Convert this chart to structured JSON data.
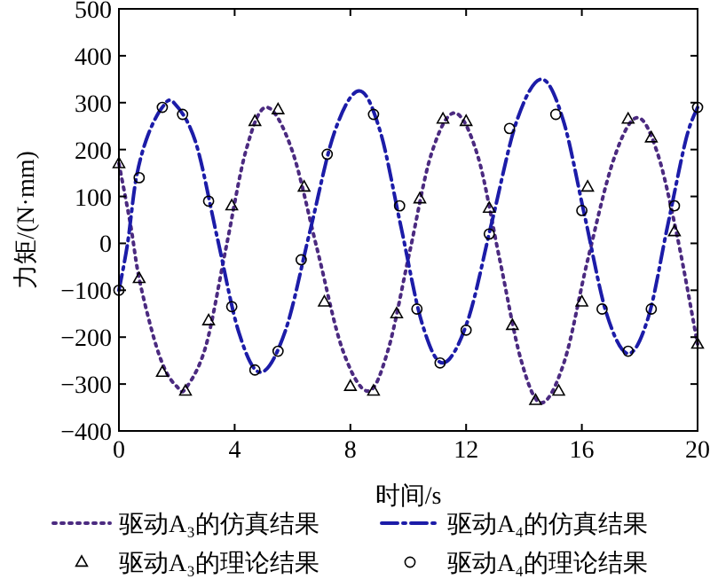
{
  "chart_data": {
    "type": "line",
    "xlabel": "时间/s",
    "ylabel": "力矩/(N·mm)",
    "xlim": [
      0,
      20
    ],
    "ylim": [
      -400,
      500
    ],
    "xticks": [
      0,
      4,
      8,
      12,
      16,
      20
    ],
    "yticks": [
      -400,
      -300,
      -200,
      -100,
      0,
      100,
      200,
      300,
      400,
      500
    ],
    "grid": false,
    "legend": "bottom",
    "series": [
      {
        "name": "驱动A₃的仿真结果",
        "color": "#4b2a80",
        "line_style": "dotted",
        "marker": "none",
        "x": [
          0,
          0.4,
          0.7,
          1.2,
          1.6,
          2.0,
          2.3,
          3.0,
          3.7,
          4.4,
          5.1,
          5.975,
          6.85,
          7.725,
          8.6,
          9.3,
          10.05,
          10.8,
          11.6,
          12.4,
          13.15,
          13.9,
          14.6,
          15.4,
          16.2,
          17.1,
          17.9,
          18.6,
          19.3,
          20
        ],
        "values": [
          170,
          40,
          -75,
          -200,
          -270,
          -305,
          -310,
          -220,
          -10,
          200,
          290,
          200,
          -12,
          -226,
          -315,
          -228,
          -18,
          191,
          278,
          187,
          -31,
          -249,
          -340,
          -251,
          -36,
          179,
          268,
          195,
          14,
          -215
        ]
      },
      {
        "name": "驱动A₄的仿真结果",
        "color": "#1c1ca8",
        "line_style": "dashdot",
        "marker": "none",
        "x": [
          0,
          0.3,
          0.6,
          1.0,
          1.5,
          1.9,
          2.65,
          3.4,
          4.15,
          4.9,
          5.75,
          6.6,
          7.45,
          8.3,
          9.025,
          9.75,
          10.475,
          11.2,
          12.05,
          12.9,
          13.75,
          14.6,
          15.35,
          16.1,
          16.85,
          17.6,
          18.3,
          18.95,
          19.6,
          20
        ],
        "values": [
          -100,
          0,
          140,
          230,
          290,
          300,
          216,
          12,
          -191,
          -275,
          -187,
          25,
          237,
          325,
          240,
          35,
          -170,
          -255,
          -166,
          48,
          261,
          350,
          264,
          58,
          -149,
          -235,
          -157,
          33,
          222,
          290
        ]
      },
      {
        "name": "驱动A₃的理论结果",
        "type": "scatter",
        "color": "#000000",
        "marker": "triangle",
        "x": [
          0,
          0.7,
          1.5,
          2.3,
          3.1,
          3.9,
          4.7,
          5.5,
          6.4,
          7.1,
          8.0,
          8.8,
          9.6,
          10.4,
          11.2,
          12.0,
          12.8,
          13.6,
          14.4,
          15.2,
          16.0,
          16.2,
          17.6,
          18.4,
          19.2,
          20
        ],
        "values": [
          170,
          -75,
          -275,
          -315,
          -165,
          80,
          260,
          285,
          120,
          -125,
          -305,
          -315,
          -150,
          95,
          265,
          260,
          75,
          -175,
          -335,
          -315,
          -125,
          120,
          265,
          225,
          25,
          -215
        ]
      },
      {
        "name": "驱动A₄的理论结果",
        "type": "scatter",
        "color": "#000000",
        "marker": "circle",
        "x": [
          0,
          0.7,
          1.5,
          2.2,
          3.1,
          3.9,
          4.7,
          5.5,
          6.3,
          7.2,
          8.8,
          9.7,
          10.3,
          11.1,
          12.0,
          12.8,
          13.5,
          15.1,
          16.0,
          16.7,
          17.6,
          18.4,
          19.2,
          20
        ],
        "values": [
          -100,
          140,
          290,
          275,
          90,
          -135,
          -270,
          -230,
          -35,
          190,
          275,
          80,
          -140,
          -255,
          -185,
          20,
          245,
          275,
          70,
          -140,
          -230,
          -140,
          80,
          290
        ]
      }
    ]
  }
}
